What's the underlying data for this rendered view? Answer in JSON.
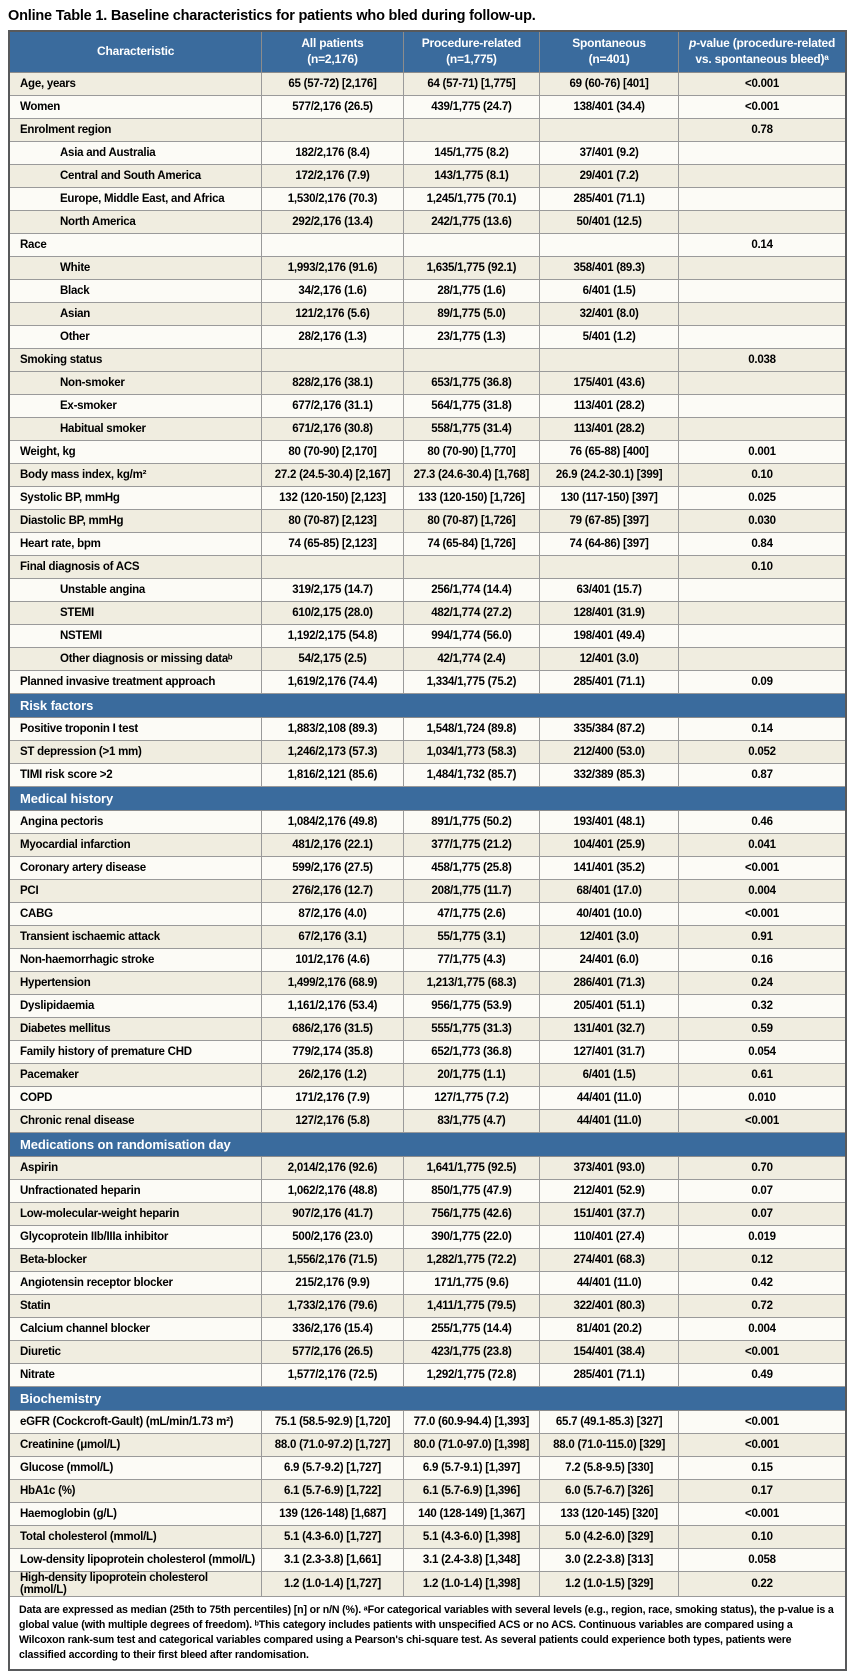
{
  "title": "Online Table 1. Baseline characteristics for patients who bled during follow-up.",
  "columns": [
    {
      "line1": "Characteristic",
      "line2": ""
    },
    {
      "line1": "All patients",
      "line2": "(n=2,176)"
    },
    {
      "line1": "Procedure-related",
      "line2": "(n=1,775)"
    },
    {
      "line1": "Spontaneous",
      "line2": "(n=401)"
    },
    {
      "italic": "p",
      "line1": "-value (procedure-related",
      "line2": "vs. spontaneous bleed)ᵃ"
    }
  ],
  "colors": {
    "header_blue": "#3a6b9d",
    "row_beige": "#f0ede0",
    "row_white": "#fcfbf6",
    "grid_line": "#9a9a9a"
  },
  "sections": [
    {
      "header": "",
      "rows": [
        {
          "label": "Age, years",
          "indent": false,
          "values": [
            "65 (57-72) [2,176]",
            "64 (57-71) [1,775]",
            "69 (60-76) [401]",
            "<0.001"
          ]
        },
        {
          "label": "Women",
          "indent": false,
          "values": [
            "577/2,176 (26.5)",
            "439/1,775 (24.7)",
            "138/401 (34.4)",
            "<0.001"
          ]
        },
        {
          "label": "Enrolment region",
          "indent": false,
          "values": [
            "",
            "",
            "",
            "0.78"
          ]
        },
        {
          "label": "Asia and Australia",
          "indent": true,
          "values": [
            "182/2,176 (8.4)",
            "145/1,775 (8.2)",
            "37/401 (9.2)",
            ""
          ]
        },
        {
          "label": "Central and South America",
          "indent": true,
          "values": [
            "172/2,176 (7.9)",
            "143/1,775 (8.1)",
            "29/401 (7.2)",
            ""
          ]
        },
        {
          "label": "Europe, Middle East, and Africa",
          "indent": true,
          "values": [
            "1,530/2,176 (70.3)",
            "1,245/1,775 (70.1)",
            "285/401 (71.1)",
            ""
          ]
        },
        {
          "label": "North America",
          "indent": true,
          "values": [
            "292/2,176 (13.4)",
            "242/1,775 (13.6)",
            "50/401 (12.5)",
            ""
          ]
        },
        {
          "label": "Race",
          "indent": false,
          "values": [
            "",
            "",
            "",
            "0.14"
          ]
        },
        {
          "label": "White",
          "indent": true,
          "values": [
            "1,993/2,176 (91.6)",
            "1,635/1,775 (92.1)",
            "358/401 (89.3)",
            ""
          ]
        },
        {
          "label": "Black",
          "indent": true,
          "values": [
            "34/2,176 (1.6)",
            "28/1,775 (1.6)",
            "6/401 (1.5)",
            ""
          ]
        },
        {
          "label": "Asian",
          "indent": true,
          "values": [
            "121/2,176 (5.6)",
            "89/1,775 (5.0)",
            "32/401 (8.0)",
            ""
          ]
        },
        {
          "label": "Other",
          "indent": true,
          "values": [
            "28/2,176 (1.3)",
            "23/1,775 (1.3)",
            "5/401 (1.2)",
            ""
          ]
        },
        {
          "label": "Smoking status",
          "indent": false,
          "values": [
            "",
            "",
            "",
            "0.038"
          ]
        },
        {
          "label": "Non-smoker",
          "indent": true,
          "values": [
            "828/2,176 (38.1)",
            "653/1,775 (36.8)",
            "175/401 (43.6)",
            ""
          ]
        },
        {
          "label": "Ex-smoker",
          "indent": true,
          "values": [
            "677/2,176 (31.1)",
            "564/1,775 (31.8)",
            "113/401 (28.2)",
            ""
          ]
        },
        {
          "label": "Habitual smoker",
          "indent": true,
          "values": [
            "671/2,176 (30.8)",
            "558/1,775 (31.4)",
            "113/401 (28.2)",
            ""
          ]
        },
        {
          "label": "Weight, kg",
          "indent": false,
          "values": [
            "80 (70-90) [2,170]",
            "80 (70-90) [1,770]",
            "76 (65-88) [400]",
            "0.001"
          ]
        },
        {
          "label": "Body mass index, kg/m²",
          "indent": false,
          "values": [
            "27.2 (24.5-30.4) [2,167]",
            "27.3 (24.6-30.4) [1,768]",
            "26.9 (24.2-30.1) [399]",
            "0.10"
          ]
        },
        {
          "label": "Systolic BP, mmHg",
          "indent": false,
          "values": [
            "132 (120-150) [2,123]",
            "133 (120-150) [1,726]",
            "130 (117-150) [397]",
            "0.025"
          ]
        },
        {
          "label": "Diastolic BP, mmHg",
          "indent": false,
          "values": [
            "80 (70-87) [2,123]",
            "80 (70-87) [1,726]",
            "79 (67-85) [397]",
            "0.030"
          ]
        },
        {
          "label": "Heart rate, bpm",
          "indent": false,
          "values": [
            "74 (65-85) [2,123]",
            "74 (65-84) [1,726]",
            "74 (64-86) [397]",
            "0.84"
          ]
        },
        {
          "label": "Final diagnosis of ACS",
          "indent": false,
          "values": [
            "",
            "",
            "",
            "0.10"
          ]
        },
        {
          "label": "Unstable angina",
          "indent": true,
          "values": [
            "319/2,175 (14.7)",
            "256/1,774 (14.4)",
            "63/401 (15.7)",
            ""
          ]
        },
        {
          "label": "STEMI",
          "indent": true,
          "values": [
            "610/2,175 (28.0)",
            "482/1,774 (27.2)",
            "128/401 (31.9)",
            ""
          ]
        },
        {
          "label": "NSTEMI",
          "indent": true,
          "values": [
            "1,192/2,175 (54.8)",
            "994/1,774 (56.0)",
            "198/401 (49.4)",
            ""
          ]
        },
        {
          "label": "Other diagnosis or missing dataᵇ",
          "indent": true,
          "values": [
            "54/2,175 (2.5)",
            "42/1,774 (2.4)",
            "12/401 (3.0)",
            ""
          ]
        },
        {
          "label": "Planned invasive treatment approach",
          "indent": false,
          "values": [
            "1,619/2,176 (74.4)",
            "1,334/1,775 (75.2)",
            "285/401 (71.1)",
            "0.09"
          ]
        }
      ]
    },
    {
      "header": "Risk factors",
      "rows": [
        {
          "label": "Positive troponin I test",
          "indent": false,
          "values": [
            "1,883/2,108 (89.3)",
            "1,548/1,724 (89.8)",
            "335/384 (87.2)",
            "0.14"
          ]
        },
        {
          "label": "ST depression (>1 mm)",
          "indent": false,
          "values": [
            "1,246/2,173 (57.3)",
            "1,034/1,773 (58.3)",
            "212/400 (53.0)",
            "0.052"
          ]
        },
        {
          "label": "TIMI risk score >2",
          "indent": false,
          "values": [
            "1,816/2,121 (85.6)",
            "1,484/1,732 (85.7)",
            "332/389 (85.3)",
            "0.87"
          ]
        }
      ]
    },
    {
      "header": "Medical history",
      "rows": [
        {
          "label": "Angina pectoris",
          "indent": false,
          "values": [
            "1,084/2,176 (49.8)",
            "891/1,775 (50.2)",
            "193/401 (48.1)",
            "0.46"
          ]
        },
        {
          "label": "Myocardial infarction",
          "indent": false,
          "values": [
            "481/2,176 (22.1)",
            "377/1,775 (21.2)",
            "104/401 (25.9)",
            "0.041"
          ]
        },
        {
          "label": "Coronary artery disease",
          "indent": false,
          "values": [
            "599/2,176 (27.5)",
            "458/1,775 (25.8)",
            "141/401 (35.2)",
            "<0.001"
          ]
        },
        {
          "label": "PCI",
          "indent": false,
          "values": [
            "276/2,176 (12.7)",
            "208/1,775 (11.7)",
            "68/401 (17.0)",
            "0.004"
          ]
        },
        {
          "label": "CABG",
          "indent": false,
          "values": [
            "87/2,176 (4.0)",
            "47/1,775 (2.6)",
            "40/401 (10.0)",
            "<0.001"
          ]
        },
        {
          "label": "Transient ischaemic attack",
          "indent": false,
          "values": [
            "67/2,176 (3.1)",
            "55/1,775 (3.1)",
            "12/401 (3.0)",
            "0.91"
          ]
        },
        {
          "label": "Non-haemorrhagic stroke",
          "indent": false,
          "values": [
            "101/2,176 (4.6)",
            "77/1,775 (4.3)",
            "24/401 (6.0)",
            "0.16"
          ]
        },
        {
          "label": "Hypertension",
          "indent": false,
          "values": [
            "1,499/2,176 (68.9)",
            "1,213/1,775 (68.3)",
            "286/401 (71.3)",
            "0.24"
          ]
        },
        {
          "label": "Dyslipidaemia",
          "indent": false,
          "values": [
            "1,161/2,176 (53.4)",
            "956/1,775 (53.9)",
            "205/401 (51.1)",
            "0.32"
          ]
        },
        {
          "label": "Diabetes mellitus",
          "indent": false,
          "values": [
            "686/2,176 (31.5)",
            "555/1,775 (31.3)",
            "131/401 (32.7)",
            "0.59"
          ]
        },
        {
          "label": "Family history of premature CHD",
          "indent": false,
          "values": [
            "779/2,174 (35.8)",
            "652/1,773 (36.8)",
            "127/401 (31.7)",
            "0.054"
          ]
        },
        {
          "label": "Pacemaker",
          "indent": false,
          "values": [
            "26/2,176 (1.2)",
            "20/1,775 (1.1)",
            "6/401 (1.5)",
            "0.61"
          ]
        },
        {
          "label": "COPD",
          "indent": false,
          "values": [
            "171/2,176 (7.9)",
            "127/1,775 (7.2)",
            "44/401 (11.0)",
            "0.010"
          ]
        },
        {
          "label": "Chronic renal disease",
          "indent": false,
          "values": [
            "127/2,176 (5.8)",
            "83/1,775 (4.7)",
            "44/401 (11.0)",
            "<0.001"
          ]
        }
      ]
    },
    {
      "header": "Medications on randomisation day",
      "rows": [
        {
          "label": "Aspirin",
          "indent": false,
          "values": [
            "2,014/2,176 (92.6)",
            "1,641/1,775 (92.5)",
            "373/401 (93.0)",
            "0.70"
          ]
        },
        {
          "label": "Unfractionated heparin",
          "indent": false,
          "values": [
            "1,062/2,176 (48.8)",
            "850/1,775 (47.9)",
            "212/401 (52.9)",
            "0.07"
          ]
        },
        {
          "label": "Low-molecular-weight heparin",
          "indent": false,
          "values": [
            "907/2,176 (41.7)",
            "756/1,775 (42.6)",
            "151/401 (37.7)",
            "0.07"
          ]
        },
        {
          "label": "Glycoprotein IIb/IIIa inhibitor",
          "indent": false,
          "values": [
            "500/2,176 (23.0)",
            "390/1,775 (22.0)",
            "110/401 (27.4)",
            "0.019"
          ]
        },
        {
          "label": "Beta-blocker",
          "indent": false,
          "values": [
            "1,556/2,176 (71.5)",
            "1,282/1,775 (72.2)",
            "274/401 (68.3)",
            "0.12"
          ]
        },
        {
          "label": "Angiotensin receptor blocker",
          "indent": false,
          "values": [
            "215/2,176 (9.9)",
            "171/1,775 (9.6)",
            "44/401 (11.0)",
            "0.42"
          ]
        },
        {
          "label": "Statin",
          "indent": false,
          "values": [
            "1,733/2,176 (79.6)",
            "1,411/1,775 (79.5)",
            "322/401 (80.3)",
            "0.72"
          ]
        },
        {
          "label": "Calcium channel blocker",
          "indent": false,
          "values": [
            "336/2,176 (15.4)",
            "255/1,775 (14.4)",
            "81/401 (20.2)",
            "0.004"
          ]
        },
        {
          "label": "Diuretic",
          "indent": false,
          "values": [
            "577/2,176 (26.5)",
            "423/1,775 (23.8)",
            "154/401 (38.4)",
            "<0.001"
          ]
        },
        {
          "label": "Nitrate",
          "indent": false,
          "values": [
            "1,577/2,176 (72.5)",
            "1,292/1,775 (72.8)",
            "285/401 (71.1)",
            "0.49"
          ]
        }
      ]
    },
    {
      "header": "Biochemistry",
      "rows": [
        {
          "label": "eGFR (Cockcroft-Gault) (mL/min/1.73 m²)",
          "indent": false,
          "values": [
            "75.1 (58.5-92.9) [1,720]",
            "77.0 (60.9-94.4) [1,393]",
            "65.7 (49.1-85.3) [327]",
            "<0.001"
          ]
        },
        {
          "label": "Creatinine (μmol/L)",
          "indent": false,
          "values": [
            "88.0 (71.0-97.2) [1,727]",
            "80.0 (71.0-97.0) [1,398]",
            "88.0 (71.0-115.0) [329]",
            "<0.001"
          ]
        },
        {
          "label": "Glucose (mmol/L)",
          "indent": false,
          "values": [
            "6.9 (5.7-9.2) [1,727]",
            "6.9 (5.7-9.1) [1,397]",
            "7.2 (5.8-9.5) [330]",
            "0.15"
          ]
        },
        {
          "label": "HbA1c (%)",
          "indent": false,
          "values": [
            "6.1 (5.7-6.9) [1,722]",
            "6.1 (5.7-6.9) [1,396]",
            "6.0 (5.7-6.7) [326]",
            "0.17"
          ]
        },
        {
          "label": "Haemoglobin (g/L)",
          "indent": false,
          "values": [
            "139 (126-148) [1,687]",
            "140 (128-149) [1,367]",
            "133 (120-145) [320]",
            "<0.001"
          ]
        },
        {
          "label": "Total cholesterol (mmol/L)",
          "indent": false,
          "values": [
            "5.1 (4.3-6.0) [1,727]",
            "5.1 (4.3-6.0) [1,398]",
            "5.0 (4.2-6.0) [329]",
            "0.10"
          ]
        },
        {
          "label": "Low-density lipoprotein cholesterol (mmol/L)",
          "indent": false,
          "values": [
            "3.1 (2.3-3.8) [1,661]",
            "3.1 (2.4-3.8) [1,348]",
            "3.0 (2.2-3.8) [313]",
            "0.058"
          ]
        },
        {
          "label": "High-density lipoprotein cholesterol (mmol/L)",
          "indent": false,
          "values": [
            "1.2 (1.0-1.4) [1,727]",
            "1.2 (1.0-1.4) [1,398]",
            "1.2 (1.0-1.5) [329]",
            "0.22"
          ]
        }
      ]
    }
  ],
  "footnote": "Data are expressed as median (25th to 75th percentiles) [n] or n/N (%). ᵃFor categorical variables with several levels (e.g., region, race, smoking status), the p-value is a global value (with multiple degrees of freedom). ᵇThis category includes patients with unspecified ACS or no ACS. Continuous variables are compared using a Wilcoxon rank-sum test and categorical variables compared using a Pearson's chi-square test. As several patients could experience both types, patients were classified according to their first bleed after randomisation."
}
